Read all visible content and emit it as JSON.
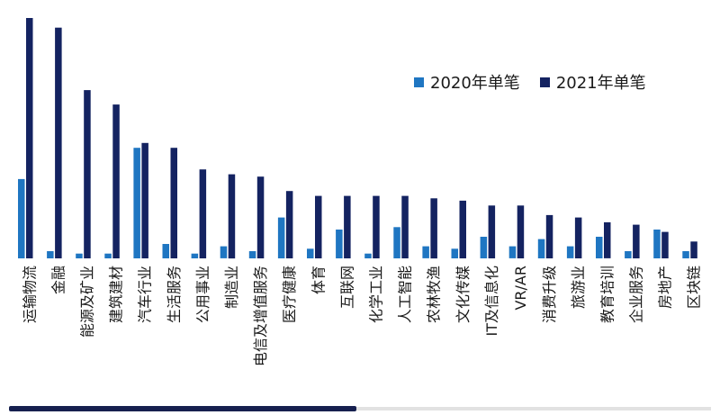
{
  "chart_data": {
    "type": "bar",
    "categories": [
      "运输物流",
      "金融",
      "能源及矿业",
      "建筑建材",
      "汽车行业",
      "生活服务",
      "公用事业",
      "制造业",
      "电信及增值服务",
      "医疗健康",
      "体育",
      "互联网",
      "化学工业",
      "人工智能",
      "农林牧渔",
      "文化传媒",
      "IT及信息化",
      "VR/AR",
      "消费升级",
      "旅游业",
      "教育培训",
      "企业服务",
      "房地产",
      "区块链"
    ],
    "series": [
      {
        "name": "2020年单笔",
        "color": "#1f76c2",
        "values": [
          33,
          3,
          2,
          2,
          46,
          6,
          2,
          5,
          3,
          17,
          4,
          12,
          2,
          13,
          5,
          4,
          9,
          5,
          8,
          5,
          9,
          3,
          12,
          3
        ]
      },
      {
        "name": "2021年单笔",
        "color": "#142361",
        "values": [
          100,
          96,
          70,
          64,
          48,
          46,
          37,
          35,
          34,
          28,
          26,
          26,
          26,
          26,
          25,
          24,
          22,
          22,
          18,
          17,
          15,
          14,
          11,
          7
        ]
      }
    ],
    "ylim": [
      0,
      100
    ],
    "grid": false,
    "legend_position": "top-right",
    "xlabel": "",
    "ylabel": ""
  }
}
